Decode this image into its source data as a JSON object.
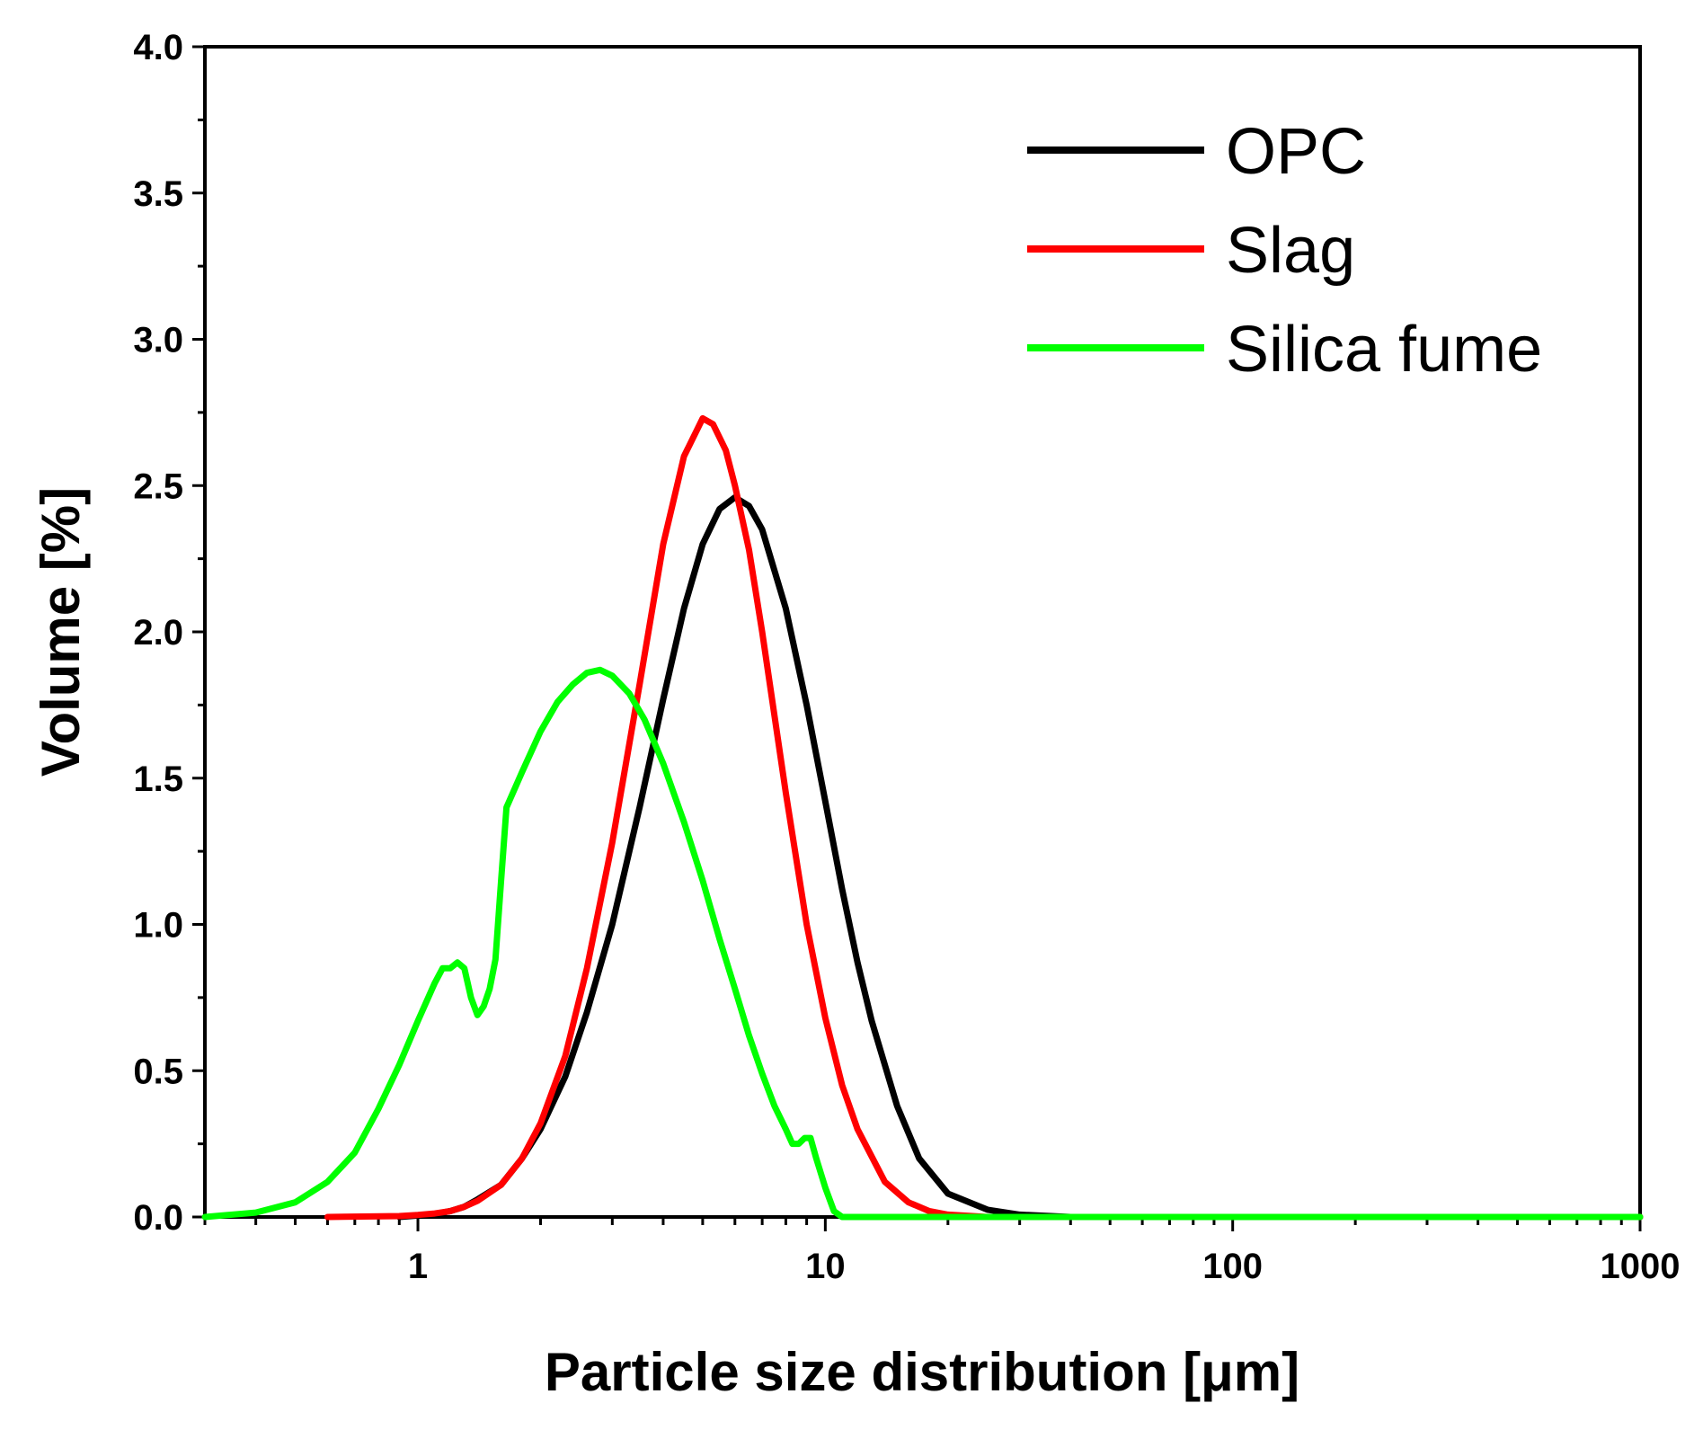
{
  "chart_data": {
    "type": "line",
    "xlabel": "Particle size distribution [μm]",
    "ylabel": "Volume [%]",
    "xscale": "log",
    "xlim": [
      0.3,
      1000
    ],
    "ylim": [
      0,
      4.0
    ],
    "x_ticks": [
      1,
      10,
      100,
      1000
    ],
    "x_tick_labels": [
      "1",
      "10",
      "100",
      "1000"
    ],
    "y_ticks": [
      0.0,
      0.5,
      1.0,
      1.5,
      2.0,
      2.5,
      3.0,
      3.5,
      4.0
    ],
    "y_tick_labels": [
      "0.0",
      "0.5",
      "1.0",
      "1.5",
      "2.0",
      "2.5",
      "3.0",
      "3.5",
      "4.0"
    ],
    "grid": false,
    "legend_position": "top-right",
    "series": [
      {
        "name": "OPC",
        "color": "#000000",
        "points": [
          [
            0.9,
            0.0
          ],
          [
            1.0,
            0.005
          ],
          [
            1.1,
            0.01
          ],
          [
            1.2,
            0.02
          ],
          [
            1.3,
            0.035
          ],
          [
            1.4,
            0.06
          ],
          [
            1.6,
            0.11
          ],
          [
            1.8,
            0.2
          ],
          [
            2.0,
            0.3
          ],
          [
            2.3,
            0.48
          ],
          [
            2.6,
            0.7
          ],
          [
            3.0,
            1.0
          ],
          [
            3.5,
            1.4
          ],
          [
            4.0,
            1.77
          ],
          [
            4.5,
            2.08
          ],
          [
            5.0,
            2.3
          ],
          [
            5.5,
            2.42
          ],
          [
            6.0,
            2.46
          ],
          [
            6.5,
            2.43
          ],
          [
            7.0,
            2.35
          ],
          [
            8.0,
            2.08
          ],
          [
            9.0,
            1.75
          ],
          [
            10.0,
            1.42
          ],
          [
            11.0,
            1.12
          ],
          [
            12.0,
            0.87
          ],
          [
            13.0,
            0.67
          ],
          [
            15.0,
            0.38
          ],
          [
            17.0,
            0.2
          ],
          [
            20.0,
            0.08
          ],
          [
            25.0,
            0.025
          ],
          [
            30.0,
            0.008
          ],
          [
            40.0,
            0.0
          ],
          [
            1000.0,
            0.0
          ]
        ]
      },
      {
        "name": "Slag",
        "color": "#ff0000",
        "points": [
          [
            0.6,
            0.0
          ],
          [
            0.9,
            0.003
          ],
          [
            1.0,
            0.007
          ],
          [
            1.1,
            0.012
          ],
          [
            1.2,
            0.02
          ],
          [
            1.3,
            0.035
          ],
          [
            1.4,
            0.055
          ],
          [
            1.6,
            0.11
          ],
          [
            1.8,
            0.2
          ],
          [
            2.0,
            0.32
          ],
          [
            2.3,
            0.55
          ],
          [
            2.6,
            0.85
          ],
          [
            3.0,
            1.28
          ],
          [
            3.5,
            1.82
          ],
          [
            4.0,
            2.3
          ],
          [
            4.5,
            2.6
          ],
          [
            5.0,
            2.73
          ],
          [
            5.3,
            2.71
          ],
          [
            5.7,
            2.62
          ],
          [
            6.0,
            2.5
          ],
          [
            6.5,
            2.28
          ],
          [
            7.0,
            2.0
          ],
          [
            8.0,
            1.45
          ],
          [
            9.0,
            1.0
          ],
          [
            10.0,
            0.68
          ],
          [
            11.0,
            0.45
          ],
          [
            12.0,
            0.3
          ],
          [
            14.0,
            0.12
          ],
          [
            16.0,
            0.05
          ],
          [
            18.0,
            0.02
          ],
          [
            20.0,
            0.008
          ],
          [
            25.0,
            0.0
          ],
          [
            1000.0,
            0.0
          ]
        ]
      },
      {
        "name": "Silica fume",
        "color": "#00ff00",
        "points": [
          [
            0.3,
            0.0
          ],
          [
            0.4,
            0.015
          ],
          [
            0.5,
            0.05
          ],
          [
            0.6,
            0.12
          ],
          [
            0.7,
            0.22
          ],
          [
            0.8,
            0.37
          ],
          [
            0.9,
            0.52
          ],
          [
            1.0,
            0.67
          ],
          [
            1.1,
            0.8
          ],
          [
            1.15,
            0.85
          ],
          [
            1.2,
            0.85
          ],
          [
            1.25,
            0.87
          ],
          [
            1.3,
            0.85
          ],
          [
            1.35,
            0.75
          ],
          [
            1.4,
            0.69
          ],
          [
            1.45,
            0.72
          ],
          [
            1.5,
            0.78
          ],
          [
            1.55,
            0.88
          ],
          [
            1.6,
            1.15
          ],
          [
            1.65,
            1.4
          ],
          [
            1.8,
            1.52
          ],
          [
            2.0,
            1.66
          ],
          [
            2.2,
            1.76
          ],
          [
            2.4,
            1.82
          ],
          [
            2.6,
            1.86
          ],
          [
            2.8,
            1.87
          ],
          [
            3.0,
            1.85
          ],
          [
            3.3,
            1.79
          ],
          [
            3.6,
            1.7
          ],
          [
            4.0,
            1.55
          ],
          [
            4.5,
            1.35
          ],
          [
            5.0,
            1.15
          ],
          [
            5.5,
            0.95
          ],
          [
            6.0,
            0.78
          ],
          [
            6.5,
            0.62
          ],
          [
            7.0,
            0.49
          ],
          [
            7.5,
            0.38
          ],
          [
            8.0,
            0.3
          ],
          [
            8.3,
            0.25
          ],
          [
            8.6,
            0.25
          ],
          [
            8.9,
            0.27
          ],
          [
            9.2,
            0.27
          ],
          [
            9.5,
            0.2
          ],
          [
            10.0,
            0.1
          ],
          [
            10.5,
            0.02
          ],
          [
            11.0,
            0.0
          ],
          [
            1000.0,
            0.0
          ]
        ]
      }
    ]
  }
}
